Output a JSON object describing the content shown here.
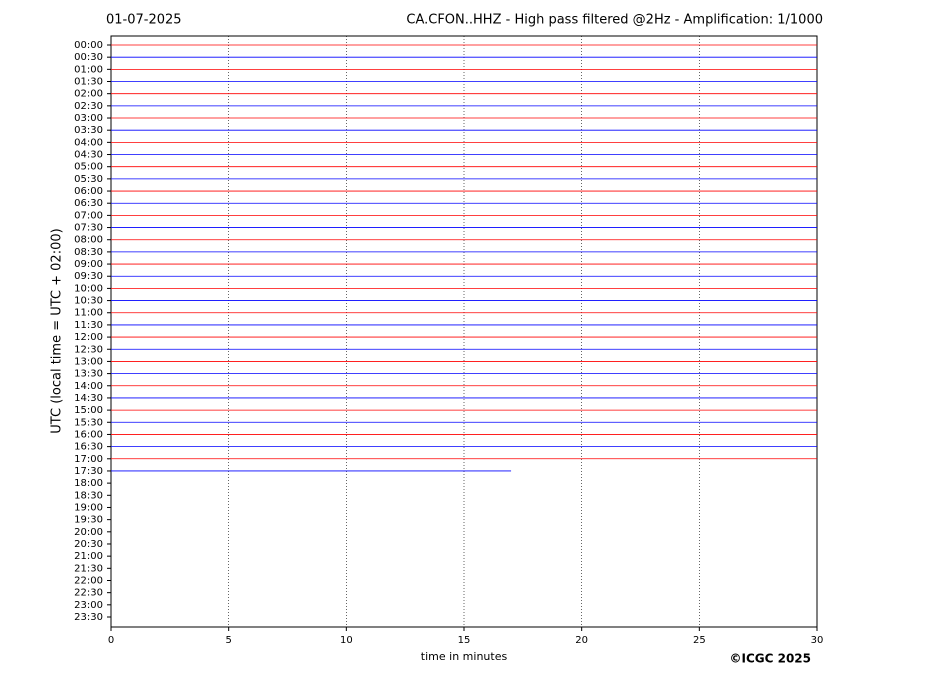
{
  "chart_data": {
    "type": "helicorder",
    "date": "01-07-2025",
    "title": "CA.CFON..HHZ - High pass filtered @2Hz - Amplification: 1/1000",
    "y_label": "UTC (local time = UTC + 02:00)",
    "x_label": "time in minutes",
    "credit": "©ICGC 2025",
    "xlim": [
      0,
      30
    ],
    "xticks": [
      0,
      5,
      10,
      15,
      20,
      25,
      30
    ],
    "grid": true,
    "colors": [
      "#ff0000",
      "#0000ff"
    ],
    "categories": [
      "00:00",
      "00:30",
      "01:00",
      "01:30",
      "02:00",
      "02:30",
      "03:00",
      "03:30",
      "04:00",
      "04:30",
      "05:00",
      "05:30",
      "06:00",
      "06:30",
      "07:00",
      "07:30",
      "08:00",
      "08:30",
      "09:00",
      "09:30",
      "10:00",
      "10:30",
      "11:00",
      "11:30",
      "12:00",
      "12:30",
      "13:00",
      "13:30",
      "14:00",
      "14:30",
      "15:00",
      "15:30",
      "16:00",
      "16:30",
      "17:00",
      "17:30",
      "18:00",
      "18:30",
      "19:00",
      "19:30",
      "20:00",
      "20:30",
      "21:00",
      "21:30",
      "22:00",
      "22:30",
      "23:00",
      "23:30"
    ],
    "values": [
      30,
      30,
      30,
      30,
      30,
      30,
      30,
      30,
      30,
      30,
      30,
      30,
      30,
      30,
      30,
      30,
      30,
      30,
      30,
      30,
      30,
      30,
      30,
      30,
      30,
      30,
      30,
      30,
      30,
      30,
      30,
      30,
      30,
      30,
      30,
      17,
      null,
      null,
      null,
      null,
      null,
      null,
      null,
      null,
      null,
      null,
      null,
      null
    ]
  }
}
